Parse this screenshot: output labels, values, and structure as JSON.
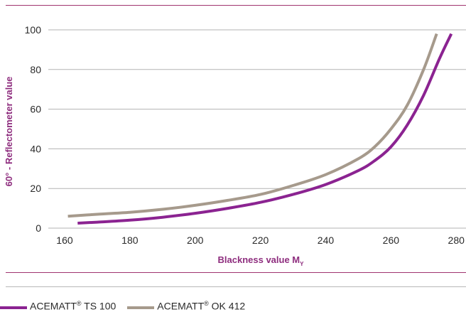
{
  "colors": {
    "series1": "#8b2391",
    "series2": "#a69a8c",
    "axis_title": "#8e2d7e",
    "grid": "#b3b3b3",
    "rule_accent": "#a0346f"
  },
  "legend": {
    "items": [
      {
        "brand": "ACEMATT",
        "mark": "®",
        "model": "TS 100"
      },
      {
        "brand": "ACEMATT",
        "mark": "®",
        "model": "OK 412"
      }
    ]
  },
  "chart_data": {
    "type": "line",
    "title": "",
    "xlabel": "Blackness value M",
    "xlabel_subscript": "Y",
    "ylabel": "60° - Reflectometer value",
    "xlim": [
      155,
      283
    ],
    "ylim": [
      0,
      100
    ],
    "xticks": [
      160,
      180,
      200,
      220,
      240,
      260,
      280
    ],
    "yticks": [
      0,
      20,
      40,
      60,
      80,
      100
    ],
    "grid": "horizontal",
    "legend_position": "bottom-left",
    "series": [
      {
        "name": "ACEMATT® TS 100",
        "x": [
          164,
          170,
          180,
          190,
          200,
          210,
          220,
          230,
          240,
          250,
          255,
          260,
          265,
          270,
          275,
          278.5
        ],
        "y": [
          2.5,
          3,
          4,
          5.5,
          7.5,
          10,
          13,
          17,
          22,
          29,
          34,
          41,
          52,
          67,
          86,
          98
        ]
      },
      {
        "name": "ACEMATT® OK 412",
        "x": [
          161,
          170,
          180,
          190,
          200,
          210,
          220,
          230,
          240,
          250,
          255,
          260,
          265,
          270,
          274
        ],
        "y": [
          6,
          7,
          8,
          9.5,
          11.5,
          14,
          17,
          21.5,
          27,
          35,
          41,
          50,
          62,
          80,
          98
        ]
      }
    ]
  }
}
